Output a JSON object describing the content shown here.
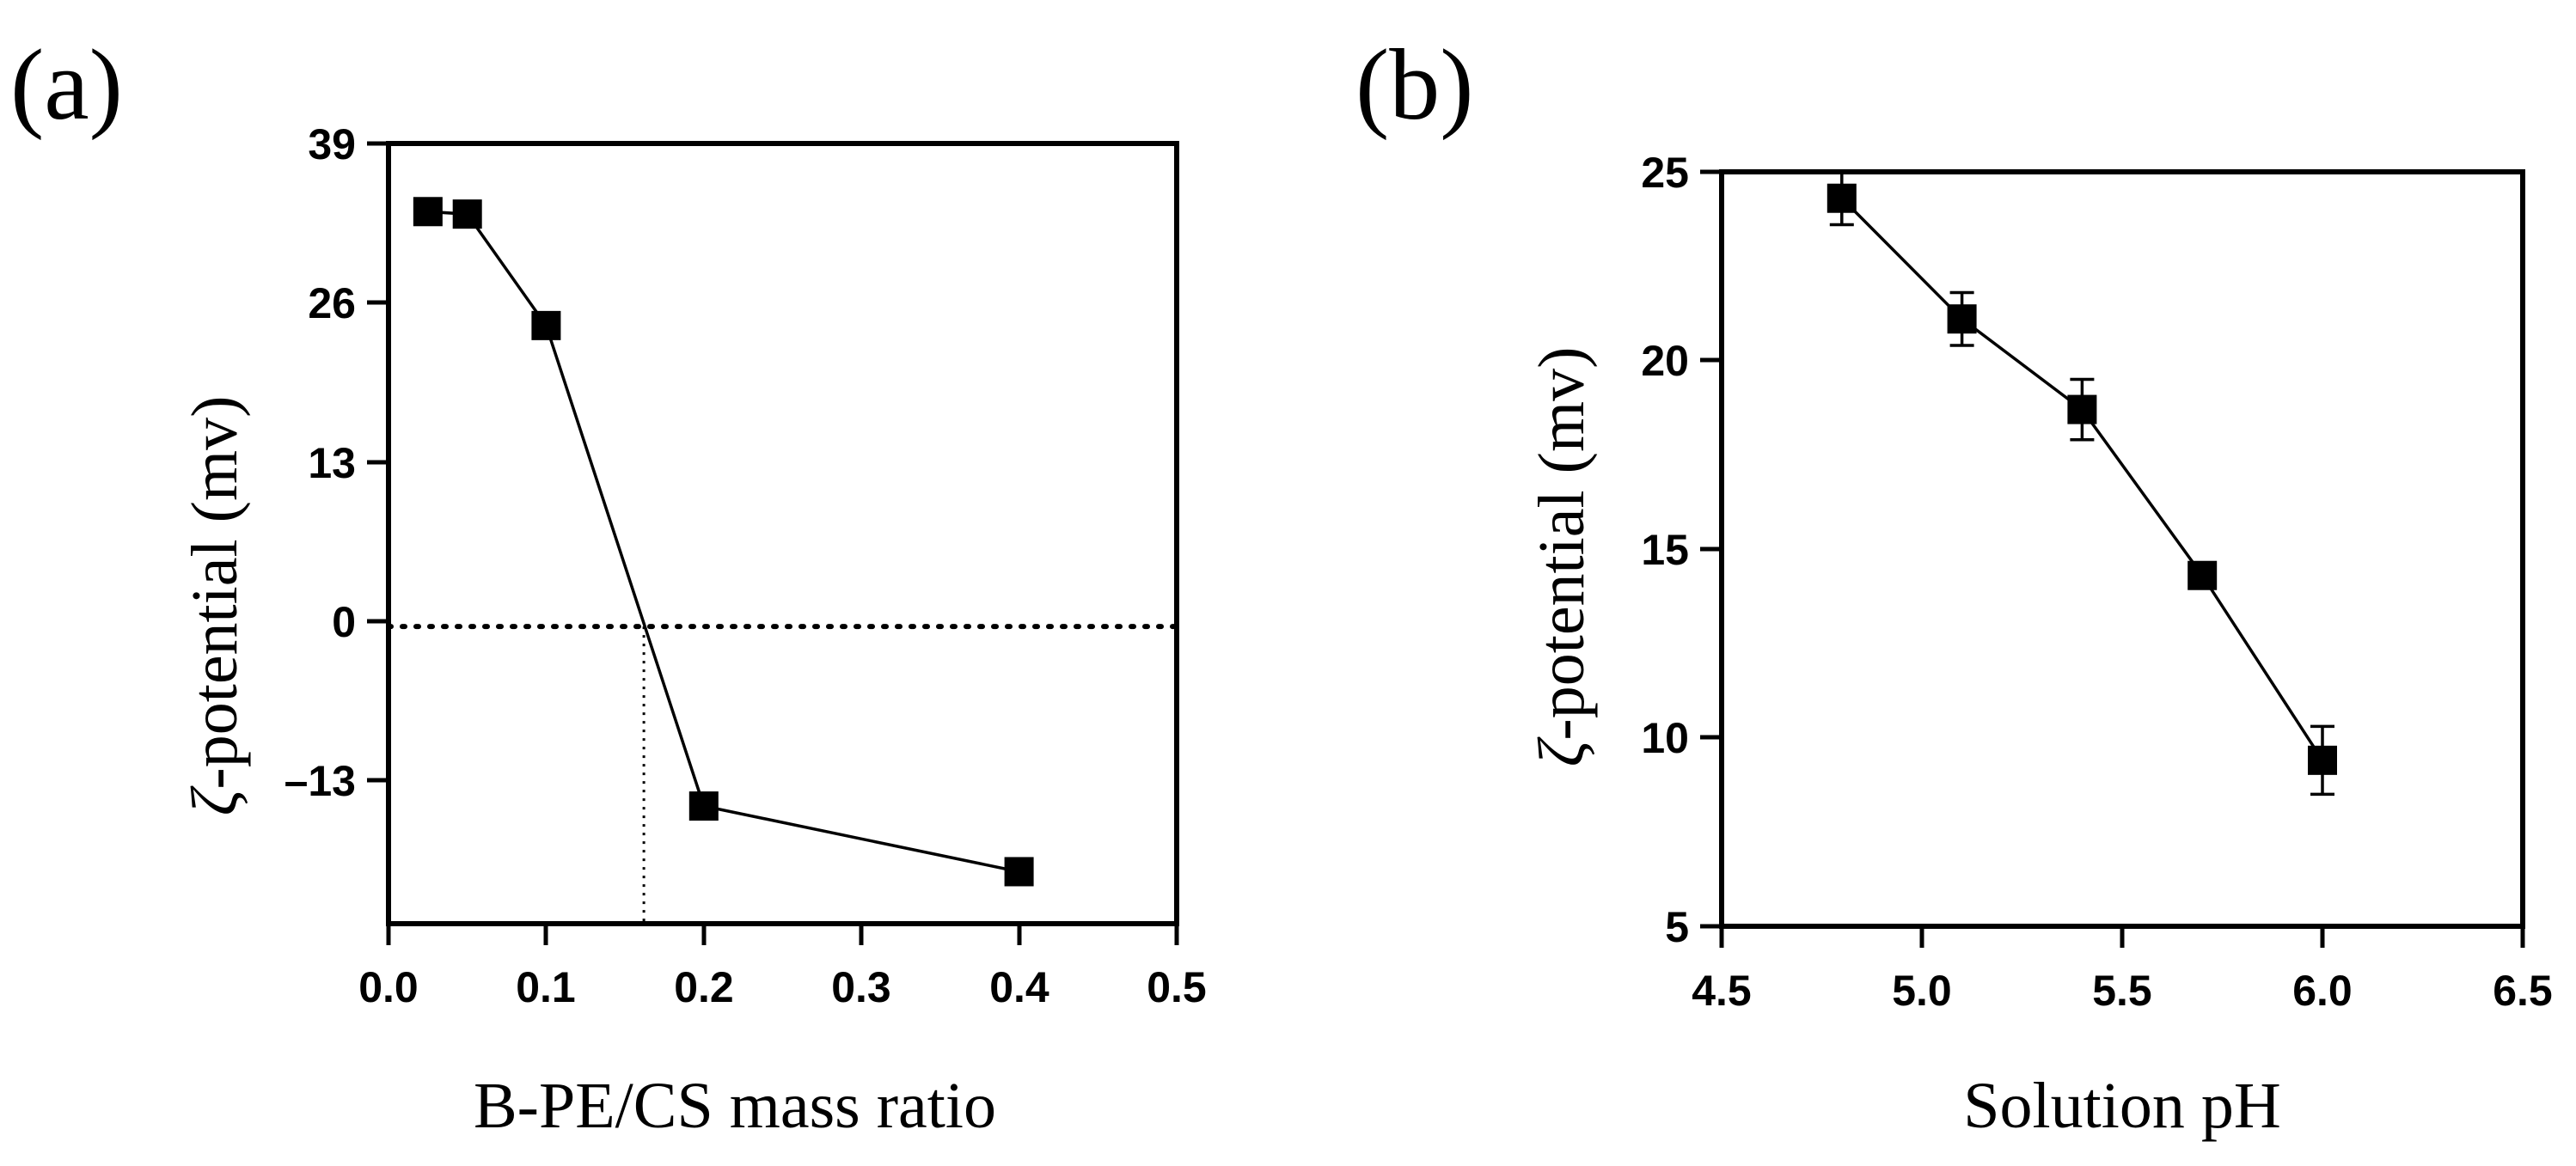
{
  "chart_data": [
    {
      "type": "line",
      "panel": "(a)",
      "xlabel": "B-PE/CS mass ratio",
      "ylabel_symbol": "ζ",
      "ylabel": "-potential (mv)",
      "xlim": [
        0.0,
        0.5
      ],
      "ylim": [
        -24,
        39
      ],
      "xticks": [
        0.0,
        0.1,
        0.2,
        0.3,
        0.4,
        0.5
      ],
      "xtick_labels": [
        "0.0",
        "0.1",
        "0.2",
        "0.3",
        "0.4",
        "0.5"
      ],
      "yticks": [
        39,
        26,
        13,
        0,
        -13
      ],
      "ytick_labels": [
        "39",
        "26",
        "13",
        "0",
        "–13"
      ],
      "series": [
        {
          "name": "ζ-potential",
          "x": [
            0.025,
            0.05,
            0.1,
            0.2,
            0.4
          ],
          "y": [
            33.5,
            33.3,
            24.3,
            -14.5,
            -19.8
          ]
        }
      ],
      "reference_lines": {
        "zero_y": 0,
        "crossing_x": 0.162
      },
      "grid": false
    },
    {
      "type": "line",
      "panel": "(b)",
      "xlabel": "Solution pH",
      "ylabel_symbol": "ζ",
      "ylabel": "-potential (mv)",
      "xlim": [
        4.5,
        6.5
      ],
      "ylim": [
        5,
        26
      ],
      "xticks": [
        4.5,
        5.0,
        5.5,
        6.0,
        6.5
      ],
      "xtick_labels": [
        "4.5",
        "5.0",
        "5.5",
        "6.0",
        "6.5"
      ],
      "yticks": [
        5,
        10,
        15,
        20,
        25
      ],
      "ytick_labels": [
        "5",
        "10",
        "15",
        "20",
        "25"
      ],
      "series": [
        {
          "name": "ζ-potential",
          "x": [
            4.8,
            5.1,
            5.4,
            5.7,
            6.0
          ],
          "y": [
            24.3,
            21.1,
            18.7,
            14.3,
            9.4
          ],
          "err": [
            0.7,
            0.7,
            0.8,
            0.3,
            0.9
          ]
        }
      ],
      "grid": false
    }
  ]
}
